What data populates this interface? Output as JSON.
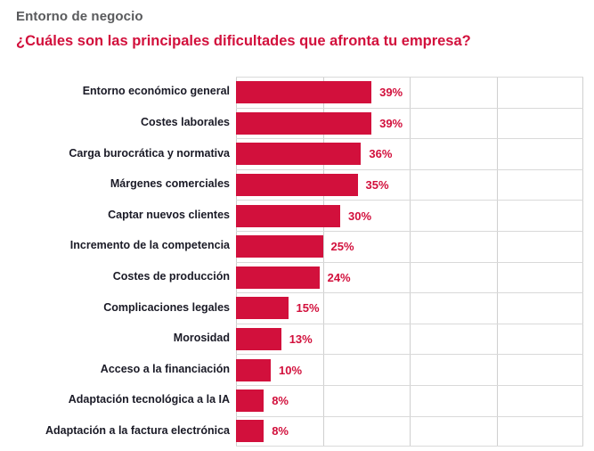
{
  "header": {
    "title": "Entorno de negocio",
    "subtitle": "¿Cuáles son las principales dificultades que afronta tu empresa?"
  },
  "chart_data": {
    "type": "bar",
    "orientation": "horizontal",
    "title": "Entorno de negocio",
    "subtitle": "¿Cuáles son las principales dificultades que afronta tu empresa?",
    "categories": [
      "Entorno económico general",
      "Costes laborales",
      "Carga burocrática y normativa",
      "Márgenes comerciales",
      "Captar nuevos clientes",
      "Incremento de la competencia",
      "Costes de producción",
      "Complicaciones legales",
      "Morosidad",
      "Acceso a la financiación",
      "Adaptación tecnológica a la IA",
      "Adaptación a la factura electrónica"
    ],
    "values": [
      39,
      39,
      36,
      35,
      30,
      25,
      24,
      15,
      13,
      10,
      8,
      8
    ],
    "value_labels": [
      "39%",
      "39%",
      "36%",
      "35%",
      "30%",
      "25%",
      "24%",
      "15%",
      "13%",
      "10%",
      "8%",
      "8%"
    ],
    "xlabel": "",
    "ylabel": "",
    "xlim": [
      0,
      100
    ],
    "gridlines": [
      0,
      25,
      50,
      75,
      100
    ],
    "grid": true,
    "legend": false,
    "bar_color": "#d2103c",
    "value_color": "#d2103c",
    "label_color": "#1a1a26",
    "gridline_color": "#cfcfcf"
  }
}
